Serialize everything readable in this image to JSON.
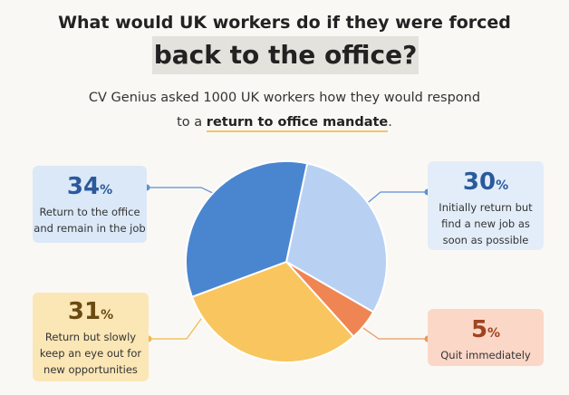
{
  "header": {
    "title_line1": "What would UK workers do if they were forced",
    "title_line2": "back to the office?",
    "subtitle_line1": "CV Genius asked 1000 UK workers how they would respond",
    "subtitle_line2_prefix": "to a ",
    "subtitle_line2_highlight": "return to office mandate",
    "subtitle_line2_suffix": "."
  },
  "chart_data": {
    "type": "pie",
    "title": "What would UK workers do if they were forced back to the office?",
    "slices": [
      {
        "label": "Initially return but find a new job as soon as possible",
        "value": 30,
        "color": "#b8d1f3"
      },
      {
        "label": "Quit immediately",
        "value": 5,
        "color": "#ee8553"
      },
      {
        "label": "Return but slowly keep an eye out for new opportunities",
        "value": 31,
        "color": "#f9c55e"
      },
      {
        "label": "Return to the office and remain in the job",
        "value": 34,
        "color": "#4a86cf"
      }
    ],
    "unit": "%"
  },
  "callouts": {
    "return": {
      "value": "34",
      "unit": "%",
      "line1": "Return to the office",
      "line2": "and remain in the job"
    },
    "initial": {
      "value": "30",
      "unit": "%",
      "line1": "Initially return but",
      "line2": "find a new job as",
      "line3": "soon as possible"
    },
    "slow": {
      "value": "31",
      "unit": "%",
      "line1": "Return but slowly",
      "line2": "keep an eye out for",
      "line3": "new opportunities"
    },
    "quit": {
      "value": "5",
      "unit": "%",
      "line1": "Quit immediately"
    }
  },
  "colors": {
    "connector_blue": "#5b8fd6",
    "connector_orange": "#e8995e",
    "connector_yellow": "#f0b84a"
  }
}
